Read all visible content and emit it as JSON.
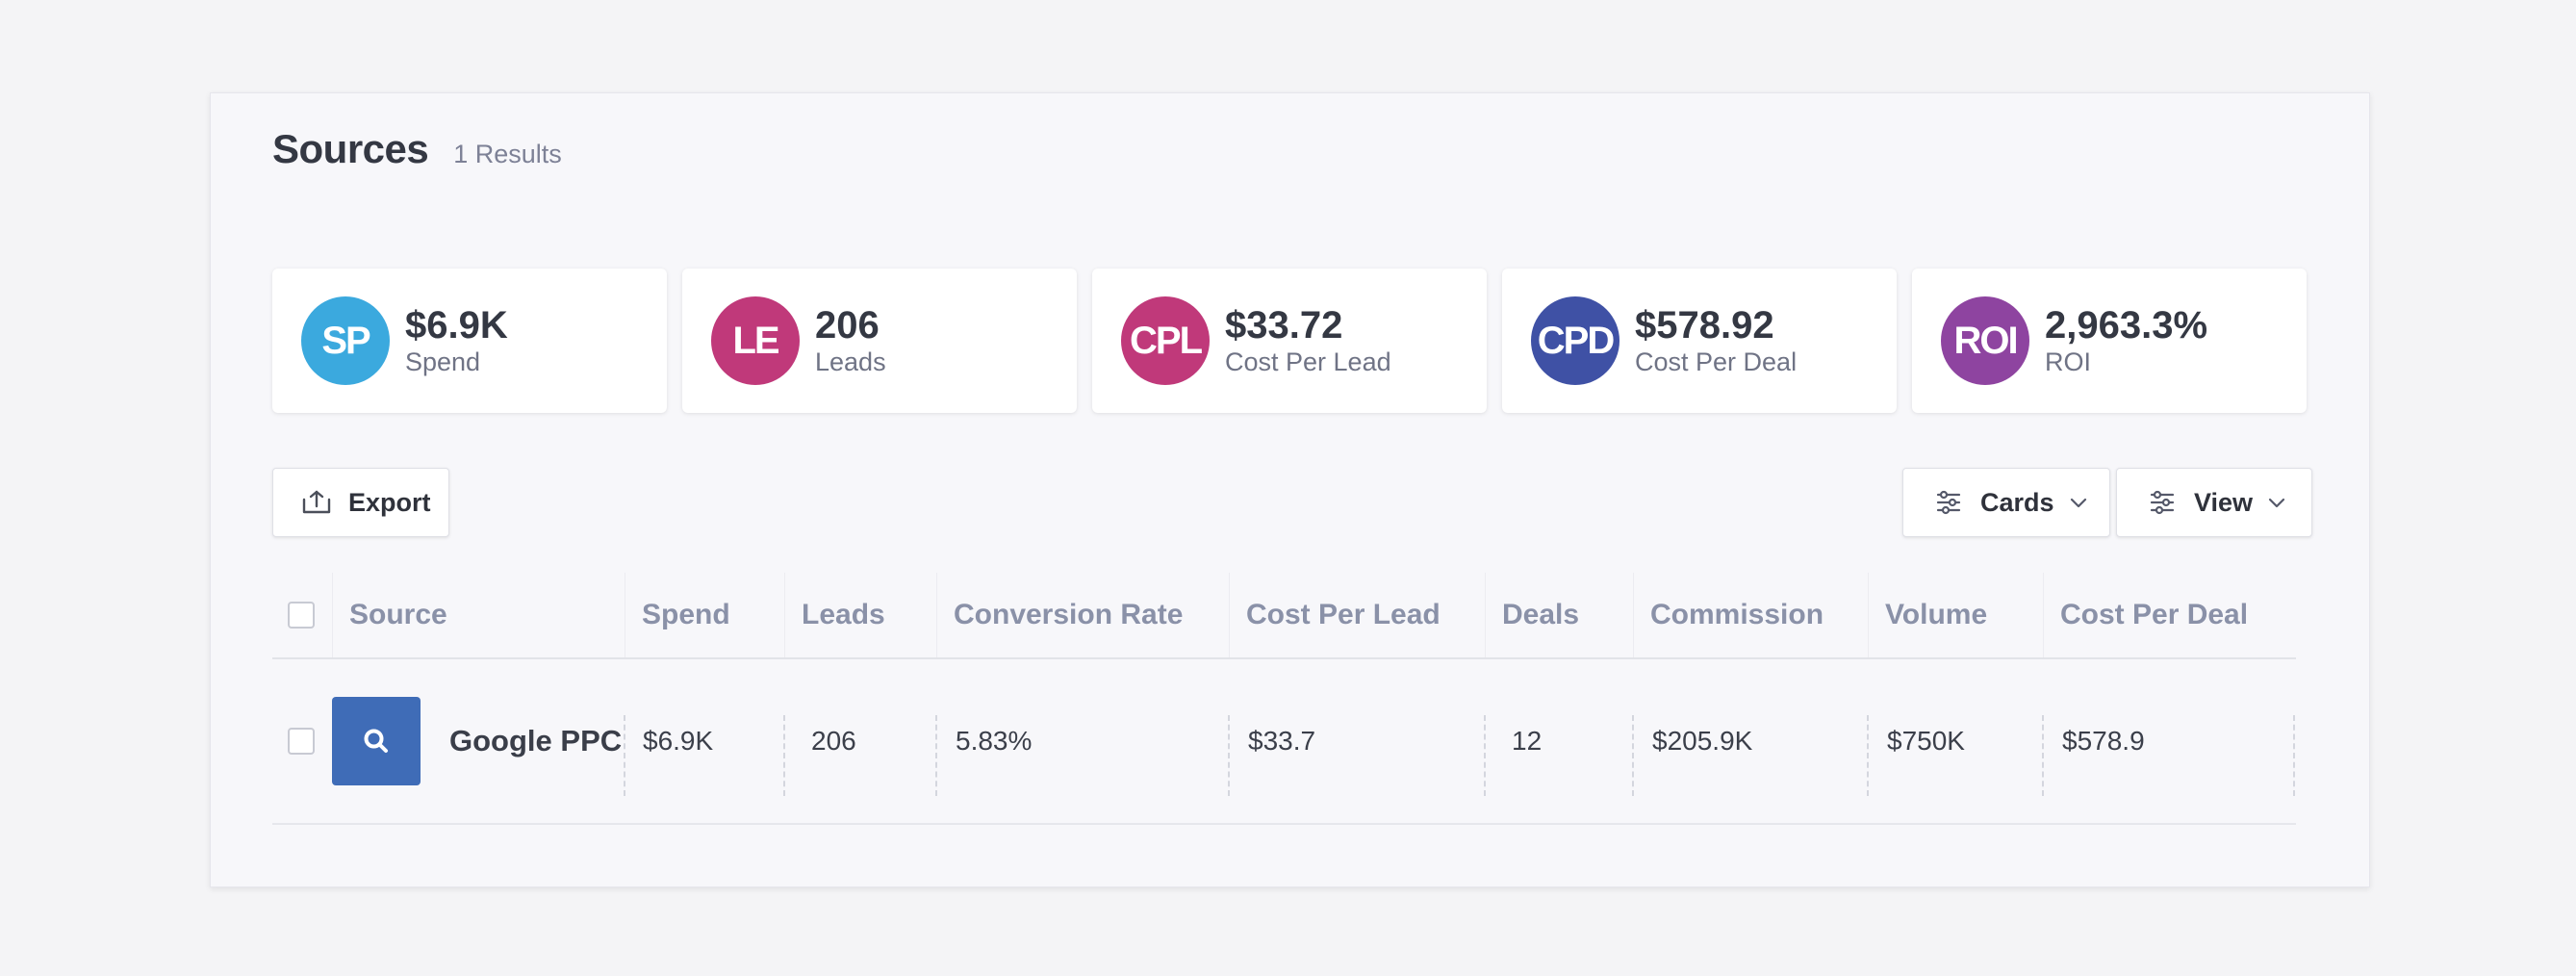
{
  "header": {
    "title": "Sources",
    "results": "1 Results"
  },
  "stats": [
    {
      "badge": "SP",
      "value": "$6.9K",
      "label": "Spend",
      "color": "#3ba9de"
    },
    {
      "badge": "LE",
      "value": "206",
      "label": "Leads",
      "color": "#c0397a"
    },
    {
      "badge": "CPL",
      "value": "$33.72",
      "label": "Cost Per Lead",
      "color": "#c0397a"
    },
    {
      "badge": "CPD",
      "value": "$578.92",
      "label": "Cost Per Deal",
      "color": "#3f51a5"
    },
    {
      "badge": "ROI",
      "value": "2,963.3%",
      "label": "ROI",
      "color": "#8e44a0"
    }
  ],
  "toolbar": {
    "export_label": "Export",
    "cards_label": "Cards",
    "view_label": "View"
  },
  "table": {
    "columns": [
      "Source",
      "Spend",
      "Leads",
      "Conversion Rate",
      "Cost Per Lead",
      "Deals",
      "Commission",
      "Volume",
      "Cost Per Deal"
    ],
    "rows": [
      {
        "source": "Google PPC",
        "icon": "search-icon",
        "spend": "$6.9K",
        "leads": "206",
        "conversion_rate": "5.83%",
        "cost_per_lead": "$33.7",
        "deals": "12",
        "commission": "$205.9K",
        "volume": "$750K",
        "cost_per_deal": "$578.9"
      }
    ]
  }
}
